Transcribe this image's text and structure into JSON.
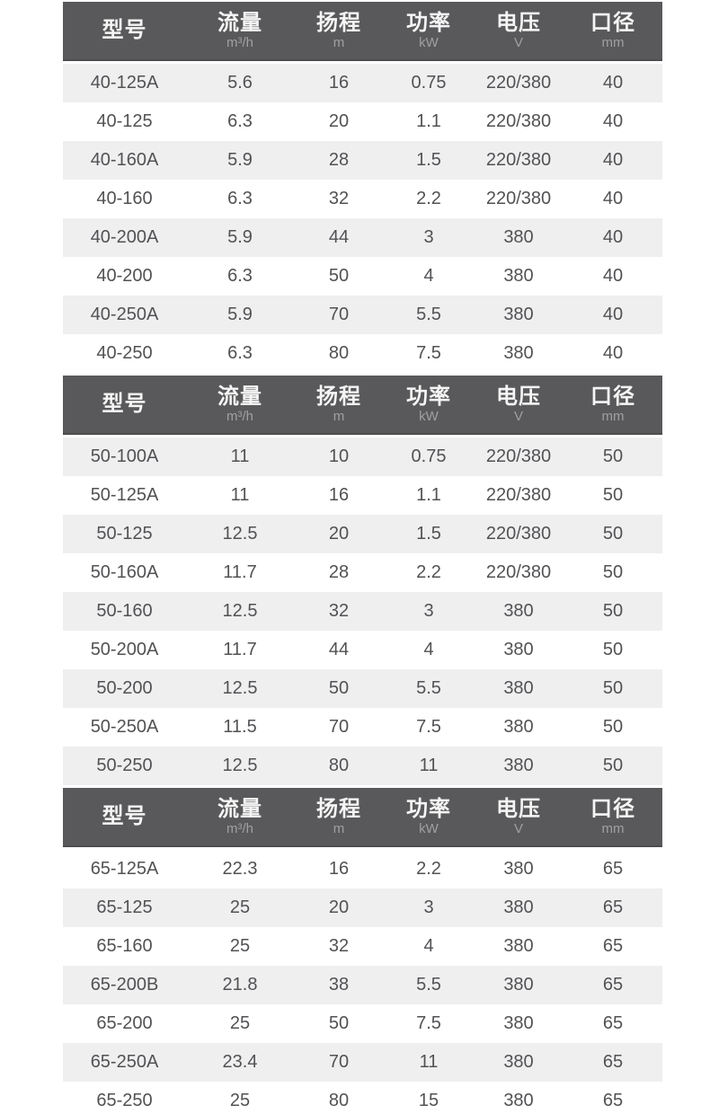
{
  "colors": {
    "header_bg": "#59595b",
    "header_edge": "#4d4d4f",
    "header_text": "#f5f5f5",
    "header_unit_text": "#a0a0a3",
    "row_shaded_bg": "#efeff0",
    "row_white_bg": "#ffffff",
    "cell_text": "#525255"
  },
  "columns": [
    {
      "label": "型号",
      "unit": ""
    },
    {
      "label": "流量",
      "unit": "m³/h"
    },
    {
      "label": "扬程",
      "unit": "m"
    },
    {
      "label": "功率",
      "unit": "kW"
    },
    {
      "label": "电压",
      "unit": "V"
    },
    {
      "label": "口径",
      "unit": "mm"
    }
  ],
  "tables": [
    {
      "first_row_shaded": true,
      "rows": [
        [
          "40-125A",
          "5.6",
          "16",
          "0.75",
          "220/380",
          "40"
        ],
        [
          "40-125",
          "6.3",
          "20",
          "1.1",
          "220/380",
          "40"
        ],
        [
          "40-160A",
          "5.9",
          "28",
          "1.5",
          "220/380",
          "40"
        ],
        [
          "40-160",
          "6.3",
          "32",
          "2.2",
          "220/380",
          "40"
        ],
        [
          "40-200A",
          "5.9",
          "44",
          "3",
          "380",
          "40"
        ],
        [
          "40-200",
          "6.3",
          "50",
          "4",
          "380",
          "40"
        ],
        [
          "40-250A",
          "5.9",
          "70",
          "5.5",
          "380",
          "40"
        ],
        [
          "40-250",
          "6.3",
          "80",
          "7.5",
          "380",
          "40"
        ]
      ]
    },
    {
      "first_row_shaded": true,
      "rows": [
        [
          "50-100A",
          "11",
          "10",
          "0.75",
          "220/380",
          "50"
        ],
        [
          "50-125A",
          "11",
          "16",
          "1.1",
          "220/380",
          "50"
        ],
        [
          "50-125",
          "12.5",
          "20",
          "1.5",
          "220/380",
          "50"
        ],
        [
          "50-160A",
          "11.7",
          "28",
          "2.2",
          "220/380",
          "50"
        ],
        [
          "50-160",
          "12.5",
          "32",
          "3",
          "380",
          "50"
        ],
        [
          "50-200A",
          "11.7",
          "44",
          "4",
          "380",
          "50"
        ],
        [
          "50-200",
          "12.5",
          "50",
          "5.5",
          "380",
          "50"
        ],
        [
          "50-250A",
          "11.5",
          "70",
          "7.5",
          "380",
          "50"
        ],
        [
          "50-250",
          "12.5",
          "80",
          "11",
          "380",
          "50"
        ]
      ]
    },
    {
      "first_row_shaded": false,
      "rows": [
        [
          "65-125A",
          "22.3",
          "16",
          "2.2",
          "380",
          "65"
        ],
        [
          "65-125",
          "25",
          "20",
          "3",
          "380",
          "65"
        ],
        [
          "65-160",
          "25",
          "32",
          "4",
          "380",
          "65"
        ],
        [
          "65-200B",
          "21.8",
          "38",
          "5.5",
          "380",
          "65"
        ],
        [
          "65-200",
          "25",
          "50",
          "7.5",
          "380",
          "65"
        ],
        [
          "65-250A",
          "23.4",
          "70",
          "11",
          "380",
          "65"
        ],
        [
          "65-250",
          "25",
          "80",
          "15",
          "380",
          "65"
        ]
      ]
    }
  ]
}
